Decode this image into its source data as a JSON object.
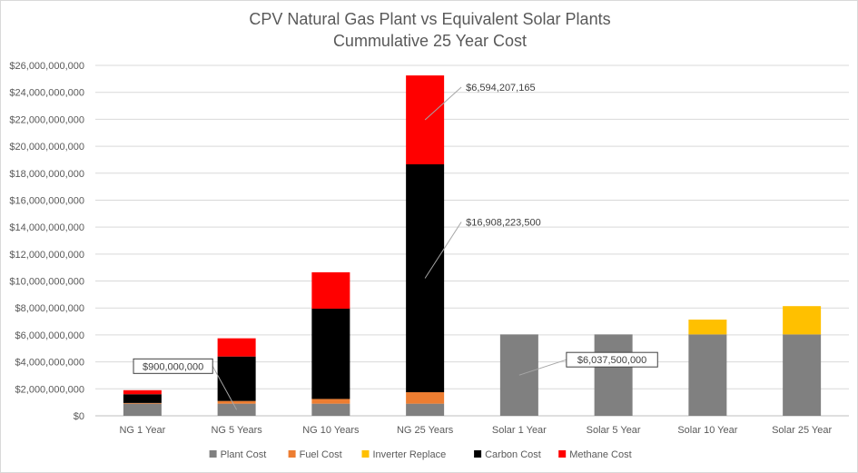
{
  "chart_data": {
    "type": "bar",
    "stacked": true,
    "title": "CPV Natural Gas Plant vs Equivalent Solar Plants",
    "subtitle": "Cummulative 25 Year Cost",
    "categories": [
      "NG 1 Year",
      "NG 5 Years",
      "NG 10 Years",
      "NG 25 Years",
      "Solar 1 Year",
      "Solar 5 Year",
      "Solar 10 Year",
      "Solar 25 Year"
    ],
    "ylim": [
      0,
      26000000000
    ],
    "ytick_step": 2000000000,
    "ytick_labels": [
      "$0",
      "$2,000,000,000",
      "$4,000,000,000",
      "$6,000,000,000",
      "$8,000,000,000",
      "$10,000,000,000",
      "$12,000,000,000",
      "$14,000,000,000",
      "$16,000,000,000",
      "$18,000,000,000",
      "$20,000,000,000",
      "$22,000,000,000",
      "$24,000,000,000",
      "$26,000,000,000"
    ],
    "grid": true,
    "legend_position": "bottom",
    "series": [
      {
        "name": "Plant Cost",
        "color": "#808080",
        "values": [
          900000000,
          900000000,
          900000000,
          900000000,
          6037500000,
          6037500000,
          6037500000,
          6037500000
        ]
      },
      {
        "name": "Fuel Cost",
        "color": "#ed7d31",
        "values": [
          50000000,
          200000000,
          350000000,
          850000000,
          0,
          0,
          0,
          0
        ]
      },
      {
        "name": "Inverter Replace",
        "color": "#ffc000",
        "values": [
          0,
          0,
          0,
          0,
          0,
          0,
          1100000000,
          2100000000
        ]
      },
      {
        "name": "Carbon Cost",
        "color": "#000000",
        "values": [
          650000000,
          3300000000,
          6700000000,
          16908223500,
          0,
          0,
          0,
          0
        ]
      },
      {
        "name": "Methane Cost",
        "color": "#ff0000",
        "values": [
          300000000,
          1350000000,
          2700000000,
          6594207165,
          0,
          0,
          0,
          0
        ]
      }
    ],
    "annotations": [
      {
        "text": "$900,000,000",
        "category": "NG 5 Years",
        "series": "Plant Cost"
      },
      {
        "text": "$6,037,500,000",
        "category": "Solar 1 Year",
        "series": "Plant Cost"
      },
      {
        "text": "$16,908,223,500",
        "category": "NG 25 Years",
        "series": "Carbon Cost"
      },
      {
        "text": "$6,594,207,165",
        "category": "NG 25 Years",
        "series": "Methane Cost"
      }
    ]
  }
}
